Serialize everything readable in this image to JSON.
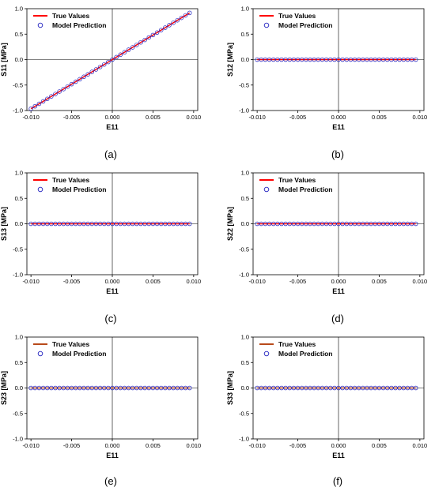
{
  "chart_data": [
    {
      "panel_label": "(a)",
      "type": "line",
      "xlabel": "E11",
      "ylabel": "S11 [MPa]",
      "xlim": [
        -0.0105,
        0.0105
      ],
      "ylim": [
        -1.0,
        1.0
      ],
      "xticks": [
        "-0.010",
        "-0.005",
        "0.000",
        "0.005",
        "0.010"
      ],
      "yticks": [
        "-1.0",
        "-0.5",
        "0.0",
        "0.5",
        "1.0"
      ],
      "legend": [
        "True Values",
        "Model Prediction"
      ],
      "legend_position": "top-left",
      "grid": false,
      "series": [
        {
          "name": "True Values",
          "style": "line",
          "color": "#ff0000",
          "x_range": [
            -0.01,
            0.0095
          ],
          "slope": 96.5,
          "intercept": 0
        },
        {
          "name": "Model Prediction",
          "style": "open-circle",
          "color": "#1f1fbf",
          "x_range": [
            -0.01,
            0.0095
          ],
          "count": 40,
          "slope": 96.5,
          "intercept": 0
        }
      ]
    },
    {
      "panel_label": "(b)",
      "type": "line",
      "xlabel": "E11",
      "ylabel": "S12 [MPa]",
      "xlim": [
        -0.0105,
        0.0105
      ],
      "ylim": [
        -1.0,
        1.0
      ],
      "xticks": [
        "-0.010",
        "-0.005",
        "0.000",
        "0.005",
        "0.010"
      ],
      "yticks": [
        "-1.0",
        "-0.5",
        "0.0",
        "0.5",
        "1.0"
      ],
      "legend": [
        "True Values",
        "Model Prediction"
      ],
      "legend_position": "top-left",
      "grid": false,
      "series": [
        {
          "name": "True Values",
          "style": "line",
          "color": "#ff0000",
          "x_range": [
            -0.01,
            0.0095
          ],
          "slope": 0,
          "intercept": 0
        },
        {
          "name": "Model Prediction",
          "style": "open-circle",
          "color": "#1f1fbf",
          "x_range": [
            -0.01,
            0.0095
          ],
          "count": 40,
          "slope": 0,
          "intercept": 0
        }
      ]
    },
    {
      "panel_label": "(c)",
      "type": "line",
      "xlabel": "E11",
      "ylabel": "S13 [MPa]",
      "xlim": [
        -0.0105,
        0.0105
      ],
      "ylim": [
        -1.0,
        1.0
      ],
      "xticks": [
        "-0.010",
        "-0.005",
        "0.000",
        "0.005",
        "0.010"
      ],
      "yticks": [
        "-1.0",
        "-0.5",
        "0.0",
        "0.5",
        "1.0"
      ],
      "legend": [
        "True Values",
        "Model Prediction"
      ],
      "legend_position": "top-left",
      "grid": false,
      "series": [
        {
          "name": "True Values",
          "style": "line",
          "color": "#ff0000",
          "x_range": [
            -0.01,
            0.0095
          ],
          "slope": 0,
          "intercept": 0
        },
        {
          "name": "Model Prediction",
          "style": "open-circle",
          "color": "#1f1fbf",
          "x_range": [
            -0.01,
            0.0095
          ],
          "count": 40,
          "slope": 0,
          "intercept": 0
        }
      ]
    },
    {
      "panel_label": "(d)",
      "type": "line",
      "xlabel": "E11",
      "ylabel": "S22 [MPa]",
      "xlim": [
        -0.0105,
        0.0105
      ],
      "ylim": [
        -1.0,
        1.0
      ],
      "xticks": [
        "-0.010",
        "-0.005",
        "0.000",
        "0.005",
        "0.010"
      ],
      "yticks": [
        "-1.0",
        "-0.5",
        "0.0",
        "0.5",
        "1.0"
      ],
      "legend": [
        "True Values",
        "Model Prediction"
      ],
      "legend_position": "top-left",
      "grid": false,
      "series": [
        {
          "name": "True Values",
          "style": "line",
          "color": "#ff0000",
          "x_range": [
            -0.01,
            0.0095
          ],
          "slope": 0,
          "intercept": 0
        },
        {
          "name": "Model Prediction",
          "style": "open-circle",
          "color": "#1f1fbf",
          "x_range": [
            -0.01,
            0.0095
          ],
          "count": 40,
          "slope": 0,
          "intercept": 0
        }
      ]
    },
    {
      "panel_label": "(e)",
      "type": "line",
      "xlabel": "E11",
      "ylabel": "S23 [MPa]",
      "xlim": [
        -0.0105,
        0.0105
      ],
      "ylim": [
        -1.0,
        1.0
      ],
      "xticks": [
        "-0.010",
        "-0.005",
        "0.000",
        "0.005",
        "0.010"
      ],
      "yticks": [
        "-1.0",
        "-0.5",
        "0.0",
        "0.5",
        "1.0"
      ],
      "legend": [
        "True Values",
        "Model Prediction"
      ],
      "legend_position": "top-left",
      "grid": false,
      "series": [
        {
          "name": "True Values",
          "style": "line",
          "color": "#b84a1a",
          "x_range": [
            -0.01,
            0.0095
          ],
          "slope": 0,
          "intercept": 0
        },
        {
          "name": "Model Prediction",
          "style": "open-circle",
          "color": "#1f1fbf",
          "x_range": [
            -0.01,
            0.0095
          ],
          "count": 40,
          "slope": 0,
          "intercept": 0
        }
      ]
    },
    {
      "panel_label": "(f)",
      "type": "line",
      "xlabel": "E11",
      "ylabel": "S33 [MPa]",
      "xlim": [
        -0.0105,
        0.0105
      ],
      "ylim": [
        -1.0,
        1.0
      ],
      "xticks": [
        "-0.010",
        "-0.005",
        "0.000",
        "0.005",
        "0.010"
      ],
      "yticks": [
        "-1.0",
        "-0.5",
        "0.0",
        "0.5",
        "1.0"
      ],
      "legend": [
        "True Values",
        "Model Prediction"
      ],
      "legend_position": "top-left",
      "grid": false,
      "series": [
        {
          "name": "True Values",
          "style": "line",
          "color": "#b84a1a",
          "x_range": [
            -0.01,
            0.0095
          ],
          "slope": 0,
          "intercept": 0
        },
        {
          "name": "Model Prediction",
          "style": "open-circle",
          "color": "#1f1fbf",
          "x_range": [
            -0.01,
            0.0095
          ],
          "count": 40,
          "slope": 0,
          "intercept": 0
        }
      ]
    }
  ]
}
